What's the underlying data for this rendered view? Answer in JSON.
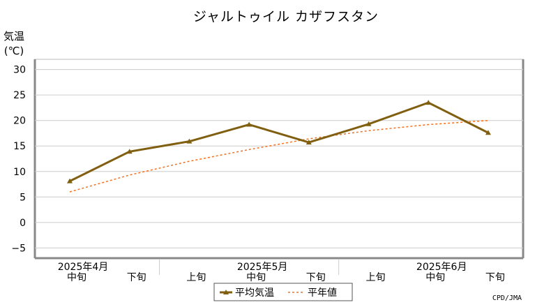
{
  "chart_data": {
    "type": "line",
    "title": "ジャルトゥイル カザフスタン",
    "ylabel_line1": "気温",
    "ylabel_line2": "(℃)",
    "ylim": [
      -7,
      32
    ],
    "yticks": [
      30,
      25,
      20,
      15,
      10,
      5,
      0,
      -5
    ],
    "ytick_labels": [
      "30",
      "25",
      "20",
      "15",
      "10",
      "5",
      "0",
      "−5"
    ],
    "grid": true,
    "categories": [
      "中旬",
      "下旬",
      "上旬",
      "中旬",
      "下旬",
      "上旬",
      "中旬",
      "下旬"
    ],
    "month_labels": [
      {
        "text": "2025年4月",
        "index": 0
      },
      {
        "text": "2025年5月",
        "index": 3
      },
      {
        "text": "2025年6月",
        "index": 6
      }
    ],
    "series": [
      {
        "name": "平均気温",
        "color": "#806010",
        "style": "solid",
        "marker": "triangle",
        "values": [
          8.1,
          13.9,
          15.9,
          19.2,
          15.7,
          19.3,
          23.5,
          17.6
        ]
      },
      {
        "name": "平年値",
        "color": "#f07020",
        "style": "dashed",
        "values": [
          6.0,
          9.3,
          12.0,
          14.3,
          16.4,
          18.0,
          19.2,
          20.0
        ]
      }
    ],
    "legend": {
      "position": "bottom-center"
    },
    "credit": "CPD/JMA"
  }
}
